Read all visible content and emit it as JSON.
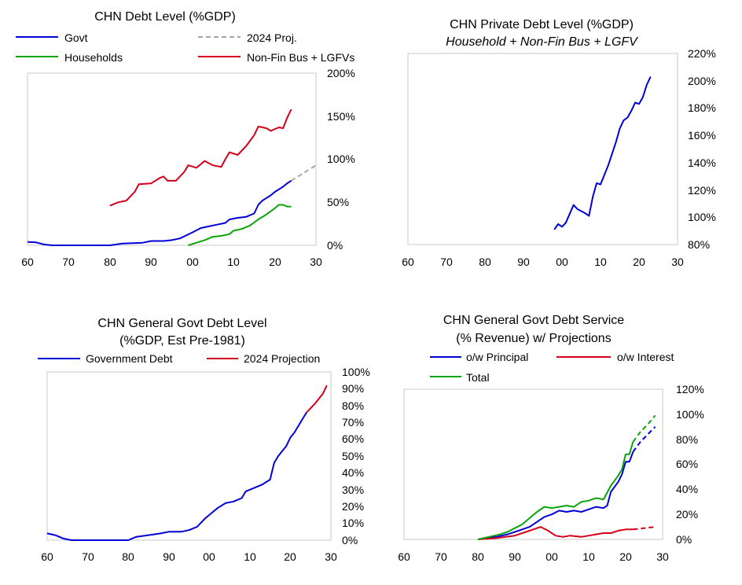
{
  "colors": {
    "blue": "#0000d8",
    "green": "#0aa40a",
    "red": "#d4001a",
    "gray": "#a6a6a6",
    "frame": "#c8c8c8"
  },
  "chart_data": [
    {
      "type": "line",
      "title": "CHN Debt Level (%GDP)",
      "xlabel": "",
      "ylabel": "",
      "xlim": [
        1960,
        2030
      ],
      "ylim": [
        0,
        2
      ],
      "x_tick_labels": [
        "60",
        "70",
        "80",
        "90",
        "00",
        "10",
        "20",
        "30"
      ],
      "y_tick_labels": [
        "0%",
        "50%",
        "100%",
        "150%",
        "200%"
      ],
      "y_axis_side": "right",
      "legend": [
        "Govt",
        "2024 Proj.",
        "Households",
        "Non-Fin Bus + LGFVs"
      ],
      "series": [
        {
          "name": "Govt",
          "color": "blue",
          "dash": false,
          "points": [
            [
              1960,
              0.04
            ],
            [
              1962,
              0.035
            ],
            [
              1964,
              0.01
            ],
            [
              1966,
              0.0
            ],
            [
              1975,
              0.0
            ],
            [
              1980,
              0.0
            ],
            [
              1983,
              0.02
            ],
            [
              1988,
              0.03
            ],
            [
              1990,
              0.05
            ],
            [
              1993,
              0.05
            ],
            [
              1995,
              0.06
            ],
            [
              1997,
              0.08
            ],
            [
              2000,
              0.15
            ],
            [
              2002,
              0.2
            ],
            [
              2004,
              0.22
            ],
            [
              2006,
              0.24
            ],
            [
              2008,
              0.26
            ],
            [
              2009,
              0.3
            ],
            [
              2011,
              0.32
            ],
            [
              2013,
              0.33
            ],
            [
              2014,
              0.35
            ],
            [
              2015,
              0.37
            ],
            [
              2016,
              0.47
            ],
            [
              2017,
              0.52
            ],
            [
              2018,
              0.55
            ],
            [
              2019,
              0.58
            ],
            [
              2020,
              0.62
            ],
            [
              2021,
              0.65
            ],
            [
              2022,
              0.68
            ],
            [
              2023,
              0.72
            ],
            [
              2024,
              0.75
            ]
          ]
        },
        {
          "name": "2024 Proj.",
          "color": "gray",
          "dash": true,
          "points": [
            [
              2024,
              0.75
            ],
            [
              2026,
              0.81
            ],
            [
              2028,
              0.87
            ],
            [
              2030,
              0.93
            ]
          ]
        },
        {
          "name": "Households",
          "color": "green",
          "dash": false,
          "points": [
            [
              1999,
              0.0
            ],
            [
              2001,
              0.03
            ],
            [
              2003,
              0.06
            ],
            [
              2005,
              0.1
            ],
            [
              2007,
              0.11
            ],
            [
              2009,
              0.13
            ],
            [
              2010,
              0.17
            ],
            [
              2012,
              0.19
            ],
            [
              2014,
              0.23
            ],
            [
              2016,
              0.3
            ],
            [
              2018,
              0.36
            ],
            [
              2020,
              0.43
            ],
            [
              2021,
              0.47
            ],
            [
              2022,
              0.47
            ],
            [
              2023,
              0.45
            ],
            [
              2024,
              0.45
            ]
          ]
        },
        {
          "name": "Non-Fin Bus + LGFVs",
          "color": "red",
          "dash": false,
          "points": [
            [
              1980,
              0.46
            ],
            [
              1982,
              0.5
            ],
            [
              1984,
              0.52
            ],
            [
              1986,
              0.62
            ],
            [
              1987,
              0.71
            ],
            [
              1990,
              0.72
            ],
            [
              1992,
              0.78
            ],
            [
              1993,
              0.8
            ],
            [
              1994,
              0.75
            ],
            [
              1996,
              0.75
            ],
            [
              1998,
              0.85
            ],
            [
              1999,
              0.93
            ],
            [
              2001,
              0.9
            ],
            [
              2003,
              0.98
            ],
            [
              2005,
              0.93
            ],
            [
              2007,
              0.91
            ],
            [
              2008,
              1.0
            ],
            [
              2009,
              1.08
            ],
            [
              2011,
              1.05
            ],
            [
              2013,
              1.15
            ],
            [
              2015,
              1.28
            ],
            [
              2016,
              1.38
            ],
            [
              2018,
              1.36
            ],
            [
              2019,
              1.33
            ],
            [
              2021,
              1.37
            ],
            [
              2022,
              1.36
            ],
            [
              2023,
              1.48
            ],
            [
              2024,
              1.58
            ]
          ]
        }
      ]
    },
    {
      "type": "line",
      "title": "CHN Private Debt Level (%GDP)",
      "subtitle": "Household + Non-Fin Bus + LGFV",
      "xlabel": "",
      "ylabel": "",
      "xlim": [
        1960,
        2030
      ],
      "ylim": [
        0.8,
        2.2
      ],
      "x_tick_labels": [
        "60",
        "70",
        "80",
        "90",
        "00",
        "10",
        "20",
        "30"
      ],
      "y_tick_labels": [
        "80%",
        "100%",
        "120%",
        "140%",
        "160%",
        "180%",
        "200%",
        "220%"
      ],
      "y_axis_side": "right",
      "series": [
        {
          "name": "",
          "color": "blue",
          "dash": false,
          "points": [
            [
              1998,
              0.91
            ],
            [
              1999,
              0.95
            ],
            [
              2000,
              0.93
            ],
            [
              2001,
              0.96
            ],
            [
              2003,
              1.09
            ],
            [
              2004,
              1.06
            ],
            [
              2006,
              1.03
            ],
            [
              2007,
              1.01
            ],
            [
              2008,
              1.15
            ],
            [
              2009,
              1.25
            ],
            [
              2010,
              1.24
            ],
            [
              2012,
              1.38
            ],
            [
              2014,
              1.55
            ],
            [
              2015,
              1.65
            ],
            [
              2016,
              1.71
            ],
            [
              2017,
              1.73
            ],
            [
              2018,
              1.78
            ],
            [
              2019,
              1.84
            ],
            [
              2020,
              1.83
            ],
            [
              2021,
              1.88
            ],
            [
              2022,
              1.97
            ],
            [
              2023,
              2.03
            ]
          ]
        }
      ]
    },
    {
      "type": "line",
      "title": "CHN General Govt Debt Level",
      "subtitle": "(%GDP, Est Pre-1981)",
      "xlabel": "",
      "ylabel": "",
      "xlim": [
        1960,
        2030
      ],
      "ylim": [
        0,
        1.0
      ],
      "x_tick_labels": [
        "60",
        "70",
        "80",
        "90",
        "00",
        "10",
        "20",
        "30"
      ],
      "y_tick_labels": [
        "0%",
        "10%",
        "20%",
        "30%",
        "40%",
        "50%",
        "60%",
        "70%",
        "80%",
        "90%",
        "100%"
      ],
      "y_axis_side": "right",
      "legend": [
        "Government Debt",
        "2024 Projection"
      ],
      "series": [
        {
          "name": "Government Debt",
          "color": "blue",
          "dash": false,
          "points": [
            [
              1960,
              0.04
            ],
            [
              1962,
              0.03
            ],
            [
              1964,
              0.01
            ],
            [
              1966,
              0.0
            ],
            [
              1975,
              0.0
            ],
            [
              1980,
              0.0
            ],
            [
              1982,
              0.02
            ],
            [
              1985,
              0.03
            ],
            [
              1988,
              0.04
            ],
            [
              1990,
              0.05
            ],
            [
              1993,
              0.05
            ],
            [
              1995,
              0.06
            ],
            [
              1997,
              0.08
            ],
            [
              1999,
              0.13
            ],
            [
              2000,
              0.15
            ],
            [
              2002,
              0.19
            ],
            [
              2004,
              0.22
            ],
            [
              2006,
              0.23
            ],
            [
              2008,
              0.25
            ],
            [
              2009,
              0.29
            ],
            [
              2011,
              0.31
            ],
            [
              2013,
              0.33
            ],
            [
              2015,
              0.36
            ],
            [
              2016,
              0.46
            ],
            [
              2017,
              0.5
            ],
            [
              2018,
              0.53
            ],
            [
              2019,
              0.56
            ],
            [
              2020,
              0.61
            ],
            [
              2021,
              0.64
            ],
            [
              2022,
              0.68
            ],
            [
              2023,
              0.72
            ],
            [
              2024,
              0.76
            ]
          ]
        },
        {
          "name": "2024 Projection",
          "color": "red",
          "dash": false,
          "points": [
            [
              2024,
              0.76
            ],
            [
              2026,
              0.81
            ],
            [
              2028,
              0.87
            ],
            [
              2029,
              0.92
            ]
          ]
        }
      ]
    },
    {
      "type": "line",
      "title": "CHN General Govt Debt Service",
      "subtitle": "(% Revenue) w/ Projections",
      "xlabel": "",
      "ylabel": "",
      "xlim": [
        1960,
        2030
      ],
      "ylim": [
        0,
        1.2
      ],
      "x_tick_labels": [
        "60",
        "70",
        "80",
        "90",
        "00",
        "10",
        "20",
        "30"
      ],
      "y_tick_labels": [
        "0%",
        "20%",
        "40%",
        "60%",
        "80%",
        "100%",
        "120%"
      ],
      "y_axis_side": "right",
      "legend": [
        "o/w Principal",
        "o/w Interest",
        "Total"
      ],
      "series": [
        {
          "name": "o/w Principal",
          "color": "blue",
          "dash": false,
          "points": [
            [
              1980,
              0.0
            ],
            [
              1985,
              0.02
            ],
            [
              1988,
              0.04
            ],
            [
              1990,
              0.06
            ],
            [
              1992,
              0.08
            ],
            [
              1994,
              0.1
            ],
            [
              1996,
              0.14
            ],
            [
              1998,
              0.18
            ],
            [
              2000,
              0.2
            ],
            [
              2002,
              0.23
            ],
            [
              2004,
              0.22
            ],
            [
              2006,
              0.23
            ],
            [
              2008,
              0.22
            ],
            [
              2010,
              0.24
            ],
            [
              2012,
              0.26
            ],
            [
              2014,
              0.25
            ],
            [
              2015,
              0.27
            ],
            [
              2016,
              0.38
            ],
            [
              2018,
              0.46
            ],
            [
              2019,
              0.52
            ],
            [
              2020,
              0.62
            ],
            [
              2021,
              0.62
            ],
            [
              2022,
              0.7
            ]
          ]
        },
        {
          "name": "o/w Principal",
          "color": "blue",
          "dash": true,
          "points": [
            [
              2022,
              0.7
            ],
            [
              2024,
              0.78
            ],
            [
              2026,
              0.84
            ],
            [
              2028,
              0.9
            ]
          ]
        },
        {
          "name": "o/w Interest",
          "color": "red",
          "dash": false,
          "points": [
            [
              1980,
              0.0
            ],
            [
              1985,
              0.01
            ],
            [
              1990,
              0.03
            ],
            [
              1993,
              0.06
            ],
            [
              1995,
              0.08
            ],
            [
              1997,
              0.1
            ],
            [
              1999,
              0.07
            ],
            [
              2001,
              0.03
            ],
            [
              2003,
              0.02
            ],
            [
              2005,
              0.03
            ],
            [
              2008,
              0.02
            ],
            [
              2010,
              0.03
            ],
            [
              2012,
              0.04
            ],
            [
              2014,
              0.05
            ],
            [
              2016,
              0.05
            ],
            [
              2018,
              0.07
            ],
            [
              2020,
              0.08
            ],
            [
              2022,
              0.08
            ]
          ]
        },
        {
          "name": "o/w Interest",
          "color": "red",
          "dash": true,
          "points": [
            [
              2022,
              0.08
            ],
            [
              2025,
              0.09
            ],
            [
              2028,
              0.1
            ]
          ]
        },
        {
          "name": "Total",
          "color": "green",
          "dash": false,
          "points": [
            [
              1980,
              0.0
            ],
            [
              1983,
              0.02
            ],
            [
              1986,
              0.04
            ],
            [
              1988,
              0.06
            ],
            [
              1990,
              0.09
            ],
            [
              1992,
              0.12
            ],
            [
              1994,
              0.17
            ],
            [
              1996,
              0.22
            ],
            [
              1998,
              0.26
            ],
            [
              2000,
              0.25
            ],
            [
              2002,
              0.26
            ],
            [
              2004,
              0.27
            ],
            [
              2006,
              0.26
            ],
            [
              2008,
              0.3
            ],
            [
              2010,
              0.31
            ],
            [
              2012,
              0.33
            ],
            [
              2014,
              0.32
            ],
            [
              2016,
              0.43
            ],
            [
              2018,
              0.51
            ],
            [
              2019,
              0.56
            ],
            [
              2020,
              0.68
            ],
            [
              2021,
              0.68
            ],
            [
              2022,
              0.78
            ]
          ]
        },
        {
          "name": "Total",
          "color": "green",
          "dash": true,
          "points": [
            [
              2022,
              0.78
            ],
            [
              2024,
              0.86
            ],
            [
              2026,
              0.92
            ],
            [
              2028,
              0.99
            ]
          ]
        }
      ]
    }
  ]
}
